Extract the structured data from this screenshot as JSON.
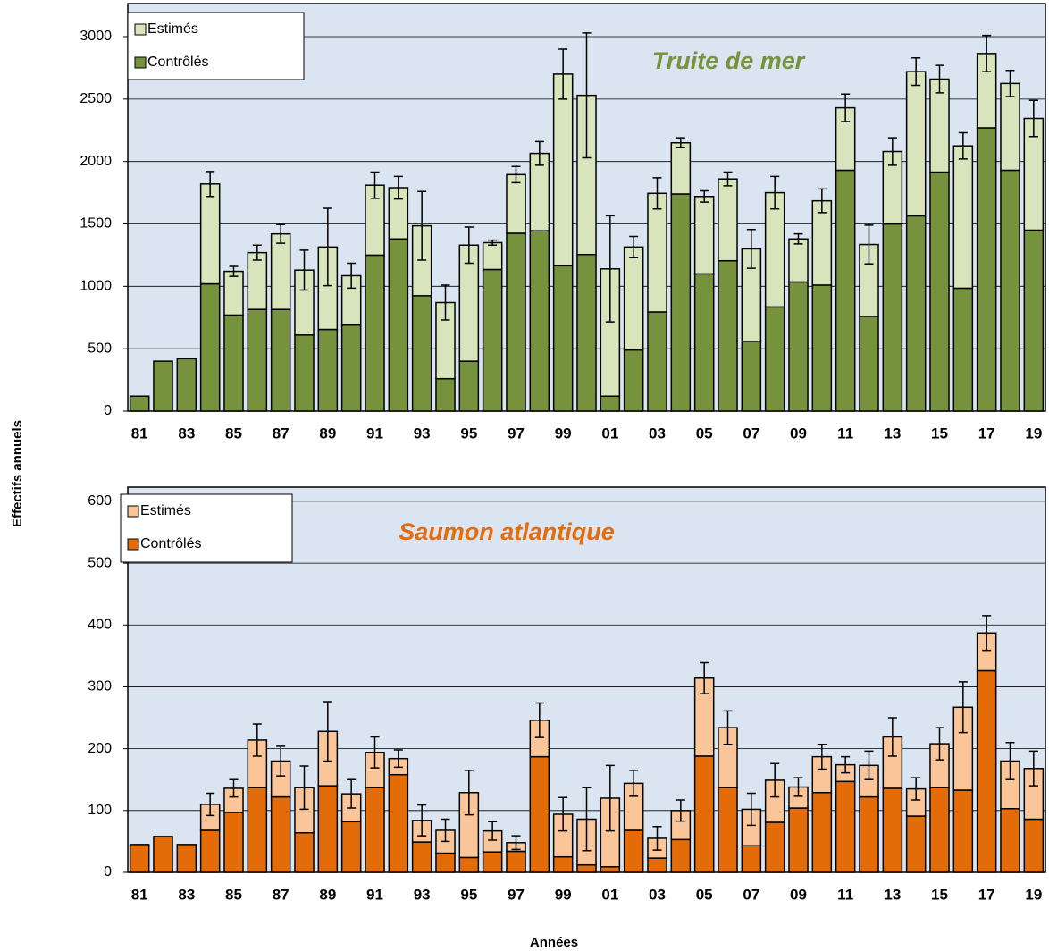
{
  "chart_data": [
    {
      "type": "stacked-bar",
      "title": "Truite de mer",
      "ylabel": "Effectifs annuels",
      "categories": [
        "81",
        null,
        "83",
        null,
        "85",
        null,
        "87",
        null,
        "89",
        null,
        "91",
        null,
        "93",
        null,
        "95",
        null,
        "97",
        null,
        "99",
        null,
        "01",
        null,
        "03",
        null,
        "05",
        null,
        "07",
        null,
        "09",
        null,
        "11",
        null,
        "13",
        null,
        "15",
        null,
        "17",
        null,
        "19"
      ],
      "series": [
        {
          "name": "Estimés",
          "color": "#d7e4bc",
          "values": [
            null,
            null,
            null,
            800,
            350,
            455,
            605,
            520,
            660,
            395,
            560,
            410,
            560,
            610,
            930,
            215,
            470,
            620,
            1535,
            1275,
            1020,
            825,
            950,
            410,
            620,
            655,
            740,
            915,
            345,
            675,
            500,
            575,
            580,
            1155,
            745,
            1140,
            595,
            695,
            895
          ],
          "errors": [
            null,
            null,
            null,
            100,
            40,
            60,
            75,
            160,
            310,
            100,
            105,
            90,
            275,
            140,
            145,
            20,
            65,
            95,
            200,
            500,
            425,
            85,
            125,
            40,
            45,
            55,
            155,
            130,
            40,
            95,
            110,
            155,
            110,
            110,
            110,
            105,
            145,
            105,
            145
          ]
        },
        {
          "name": "Contrôlés",
          "color": "#76923c",
          "values": [
            120,
            400,
            420,
            1020,
            770,
            815,
            815,
            610,
            655,
            690,
            1250,
            1380,
            925,
            260,
            400,
            1135,
            1425,
            1445,
            1165,
            1255,
            120,
            490,
            795,
            1740,
            1100,
            1205,
            560,
            835,
            1035,
            1010,
            1930,
            760,
            1500,
            1565,
            1915,
            985,
            2270,
            1930,
            1450
          ]
        }
      ],
      "title_color": "#77933c",
      "ylim": [
        0,
        3265
      ],
      "yticks": [
        0,
        500,
        1000,
        1500,
        2000,
        2500,
        3000
      ],
      "grid": true
    },
    {
      "type": "stacked-bar",
      "title": "Saumon atlantique",
      "xlabel": "Années",
      "categories": [
        "81",
        null,
        "83",
        null,
        "85",
        null,
        "87",
        null,
        "89",
        null,
        "91",
        null,
        "93",
        null,
        "95",
        null,
        "97",
        null,
        "99",
        null,
        "01",
        null,
        "03",
        null,
        "05",
        null,
        "07",
        null,
        "09",
        null,
        "11",
        null,
        "13",
        null,
        "15",
        null,
        "17",
        null,
        "19"
      ],
      "series": [
        {
          "name": "Estimés",
          "color": "#fbc59a",
          "values": [
            null,
            null,
            null,
            42,
            39,
            77,
            58,
            73,
            88,
            45,
            57,
            26,
            35,
            37,
            105,
            34,
            14,
            59,
            69,
            74,
            111,
            76,
            32,
            47,
            126,
            97,
            59,
            68,
            34,
            58,
            27,
            51,
            83,
            44,
            71,
            134,
            61,
            77,
            82
          ],
          "errors": [
            null,
            null,
            null,
            18,
            14,
            26,
            24,
            35,
            48,
            23,
            25,
            14,
            25,
            18,
            36,
            15,
            11,
            28,
            27,
            51,
            53,
            21,
            19,
            17,
            25,
            27,
            26,
            27,
            15,
            20,
            13,
            23,
            31,
            18,
            26,
            41,
            28,
            30,
            28
          ]
        },
        {
          "name": "Contrôlés",
          "color": "#e36c09",
          "values": [
            45,
            58,
            45,
            68,
            97,
            137,
            122,
            64,
            140,
            82,
            137,
            158,
            49,
            31,
            24,
            33,
            34,
            187,
            25,
            12,
            9,
            68,
            23,
            53,
            188,
            137,
            43,
            81,
            104,
            129,
            147,
            122,
            136,
            91,
            137,
            133,
            326,
            103,
            86
          ]
        }
      ],
      "title_color": "#e46c0a",
      "ylim": [
        0,
        623
      ],
      "yticks": [
        0,
        100,
        200,
        300,
        400,
        500,
        600
      ],
      "grid": true
    }
  ]
}
